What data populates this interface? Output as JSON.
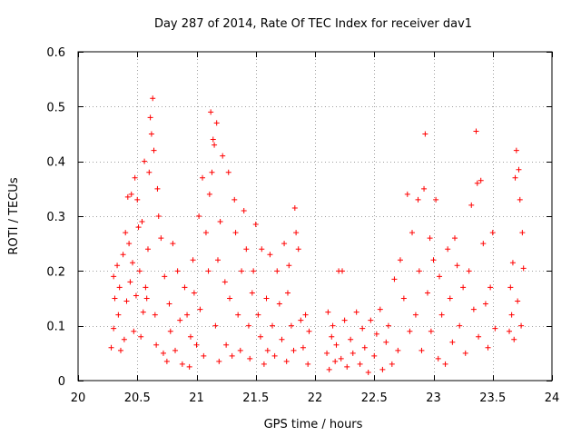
{
  "chart_data": {
    "type": "scatter",
    "title": "Day 287 of 2014, Rate Of TEC Index for receiver dav1",
    "xlabel": "GPS time / hours",
    "ylabel": "ROTI / TECUs",
    "xlim": [
      20,
      24
    ],
    "ylim": [
      0,
      0.6
    ],
    "x_ticks": [
      20,
      20.5,
      21,
      21.5,
      22,
      22.5,
      23,
      23.5,
      24
    ],
    "y_ticks": [
      0,
      0.1,
      0.2,
      0.3,
      0.4,
      0.5,
      0.6
    ],
    "x_tick_labels": [
      "20",
      "20.5",
      "21",
      "21.5",
      "22",
      "22.5",
      "23",
      "23.5",
      "24"
    ],
    "y_tick_labels": [
      "0",
      "0.1",
      "0.2",
      "0.3",
      "0.4",
      "0.5",
      "0.6"
    ],
    "grid": true,
    "marker": "+",
    "marker_color": "#ff0000",
    "series": [
      {
        "name": "ROTI",
        "points": [
          [
            20.28,
            0.06
          ],
          [
            20.3,
            0.095
          ],
          [
            20.3,
            0.19
          ],
          [
            20.31,
            0.15
          ],
          [
            20.33,
            0.21
          ],
          [
            20.34,
            0.12
          ],
          [
            20.35,
            0.17
          ],
          [
            20.36,
            0.055
          ],
          [
            20.38,
            0.23
          ],
          [
            20.39,
            0.075
          ],
          [
            20.4,
            0.27
          ],
          [
            20.41,
            0.145
          ],
          [
            20.42,
            0.335
          ],
          [
            20.43,
            0.25
          ],
          [
            20.44,
            0.18
          ],
          [
            20.45,
            0.34
          ],
          [
            20.46,
            0.215
          ],
          [
            20.47,
            0.09
          ],
          [
            20.48,
            0.37
          ],
          [
            20.49,
            0.155
          ],
          [
            20.5,
            0.33
          ],
          [
            20.51,
            0.28
          ],
          [
            20.52,
            0.2
          ],
          [
            20.53,
            0.08
          ],
          [
            20.54,
            0.29
          ],
          [
            20.55,
            0.125
          ],
          [
            20.56,
            0.4
          ],
          [
            20.57,
            0.17
          ],
          [
            20.58,
            0.15
          ],
          [
            20.59,
            0.24
          ],
          [
            20.6,
            0.38
          ],
          [
            20.61,
            0.48
          ],
          [
            20.62,
            0.45
          ],
          [
            20.63,
            0.515
          ],
          [
            20.64,
            0.42
          ],
          [
            20.65,
            0.12
          ],
          [
            20.66,
            0.065
          ],
          [
            20.67,
            0.35
          ],
          [
            20.68,
            0.3
          ],
          [
            20.7,
            0.26
          ],
          [
            20.72,
            0.05
          ],
          [
            20.73,
            0.19
          ],
          [
            20.75,
            0.035
          ],
          [
            20.77,
            0.14
          ],
          [
            20.78,
            0.09
          ],
          [
            20.8,
            0.25
          ],
          [
            20.82,
            0.055
          ],
          [
            20.84,
            0.2
          ],
          [
            20.86,
            0.11
          ],
          [
            20.88,
            0.03
          ],
          [
            20.9,
            0.17
          ],
          [
            20.92,
            0.12
          ],
          [
            20.94,
            0.025
          ],
          [
            20.95,
            0.08
          ],
          [
            20.97,
            0.22
          ],
          [
            20.98,
            0.16
          ],
          [
            21.0,
            0.065
          ],
          [
            21.02,
            0.3
          ],
          [
            21.03,
            0.13
          ],
          [
            21.05,
            0.37
          ],
          [
            21.06,
            0.045
          ],
          [
            21.08,
            0.27
          ],
          [
            21.1,
            0.2
          ],
          [
            21.11,
            0.34
          ],
          [
            21.12,
            0.49
          ],
          [
            21.13,
            0.38
          ],
          [
            21.14,
            0.44
          ],
          [
            21.15,
            0.43
          ],
          [
            21.16,
            0.1
          ],
          [
            21.17,
            0.47
          ],
          [
            21.18,
            0.22
          ],
          [
            21.19,
            0.035
          ],
          [
            21.2,
            0.29
          ],
          [
            21.22,
            0.41
          ],
          [
            21.24,
            0.18
          ],
          [
            21.25,
            0.065
          ],
          [
            21.27,
            0.38
          ],
          [
            21.28,
            0.15
          ],
          [
            21.3,
            0.045
          ],
          [
            21.32,
            0.33
          ],
          [
            21.33,
            0.27
          ],
          [
            21.35,
            0.12
          ],
          [
            21.37,
            0.055
          ],
          [
            21.38,
            0.2
          ],
          [
            21.4,
            0.31
          ],
          [
            21.42,
            0.24
          ],
          [
            21.44,
            0.1
          ],
          [
            21.45,
            0.04
          ],
          [
            21.47,
            0.16
          ],
          [
            21.48,
            0.2
          ],
          [
            21.5,
            0.285
          ],
          [
            21.52,
            0.12
          ],
          [
            21.54,
            0.08
          ],
          [
            21.55,
            0.24
          ],
          [
            21.57,
            0.03
          ],
          [
            21.59,
            0.15
          ],
          [
            21.6,
            0.055
          ],
          [
            21.62,
            0.23
          ],
          [
            21.64,
            0.1
          ],
          [
            21.66,
            0.045
          ],
          [
            21.68,
            0.2
          ],
          [
            21.7,
            0.14
          ],
          [
            21.72,
            0.075
          ],
          [
            21.74,
            0.25
          ],
          [
            21.76,
            0.035
          ],
          [
            21.77,
            0.16
          ],
          [
            21.78,
            0.21
          ],
          [
            21.8,
            0.1
          ],
          [
            21.82,
            0.055
          ],
          [
            21.83,
            0.315
          ],
          [
            21.84,
            0.27
          ],
          [
            21.86,
            0.24
          ],
          [
            21.88,
            0.11
          ],
          [
            21.9,
            0.06
          ],
          [
            21.92,
            0.12
          ],
          [
            21.94,
            0.03
          ],
          [
            21.95,
            0.09
          ],
          [
            22.1,
            0.05
          ],
          [
            22.11,
            0.125
          ],
          [
            22.12,
            0.02
          ],
          [
            22.14,
            0.08
          ],
          [
            22.15,
            0.1
          ],
          [
            22.17,
            0.035
          ],
          [
            22.18,
            0.065
          ],
          [
            22.2,
            0.2
          ],
          [
            22.22,
            0.04
          ],
          [
            22.23,
            0.2
          ],
          [
            22.25,
            0.11
          ],
          [
            22.27,
            0.025
          ],
          [
            22.3,
            0.075
          ],
          [
            22.32,
            0.05
          ],
          [
            22.35,
            0.125
          ],
          [
            22.38,
            0.03
          ],
          [
            22.4,
            0.095
          ],
          [
            22.42,
            0.06
          ],
          [
            22.45,
            0.015
          ],
          [
            22.47,
            0.11
          ],
          [
            22.5,
            0.045
          ],
          [
            22.52,
            0.085
          ],
          [
            22.55,
            0.13
          ],
          [
            22.57,
            0.02
          ],
          [
            22.6,
            0.07
          ],
          [
            22.62,
            0.1
          ],
          [
            22.65,
            0.03
          ],
          [
            22.67,
            0.185
          ],
          [
            22.7,
            0.055
          ],
          [
            22.72,
            0.22
          ],
          [
            22.75,
            0.15
          ],
          [
            22.78,
            0.34
          ],
          [
            22.8,
            0.09
          ],
          [
            22.82,
            0.27
          ],
          [
            22.85,
            0.12
          ],
          [
            22.87,
            0.33
          ],
          [
            22.88,
            0.2
          ],
          [
            22.9,
            0.055
          ],
          [
            22.92,
            0.35
          ],
          [
            22.93,
            0.45
          ],
          [
            22.95,
            0.16
          ],
          [
            22.97,
            0.26
          ],
          [
            22.98,
            0.09
          ],
          [
            23.0,
            0.22
          ],
          [
            23.02,
            0.33
          ],
          [
            23.04,
            0.04
          ],
          [
            23.05,
            0.19
          ],
          [
            23.07,
            0.12
          ],
          [
            23.1,
            0.03
          ],
          [
            23.12,
            0.24
          ],
          [
            23.14,
            0.15
          ],
          [
            23.16,
            0.07
          ],
          [
            23.18,
            0.26
          ],
          [
            23.2,
            0.21
          ],
          [
            23.22,
            0.1
          ],
          [
            23.25,
            0.17
          ],
          [
            23.27,
            0.05
          ],
          [
            23.3,
            0.2
          ],
          [
            23.32,
            0.32
          ],
          [
            23.34,
            0.13
          ],
          [
            23.36,
            0.455
          ],
          [
            23.37,
            0.36
          ],
          [
            23.38,
            0.08
          ],
          [
            23.4,
            0.365
          ],
          [
            23.42,
            0.25
          ],
          [
            23.44,
            0.14
          ],
          [
            23.46,
            0.06
          ],
          [
            23.48,
            0.17
          ],
          [
            23.5,
            0.27
          ],
          [
            23.52,
            0.095
          ],
          [
            23.64,
            0.09
          ],
          [
            23.65,
            0.17
          ],
          [
            23.66,
            0.12
          ],
          [
            23.67,
            0.215
          ],
          [
            23.68,
            0.075
          ],
          [
            23.69,
            0.37
          ],
          [
            23.7,
            0.42
          ],
          [
            23.71,
            0.145
          ],
          [
            23.72,
            0.385
          ],
          [
            23.73,
            0.33
          ],
          [
            23.74,
            0.1
          ],
          [
            23.75,
            0.27
          ],
          [
            23.76,
            0.205
          ]
        ]
      }
    ]
  }
}
